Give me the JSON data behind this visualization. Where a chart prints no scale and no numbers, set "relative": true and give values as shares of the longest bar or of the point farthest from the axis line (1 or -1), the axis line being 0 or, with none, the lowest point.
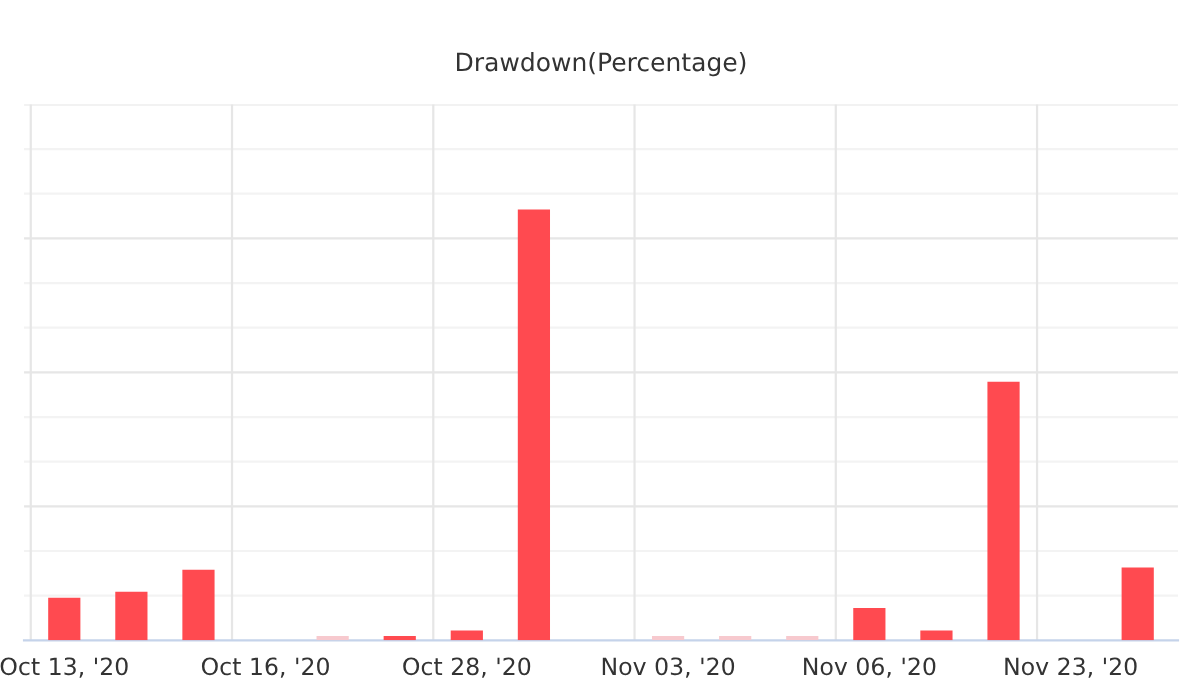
{
  "chart_data": {
    "type": "bar",
    "title": "Drawdown(Percentage)",
    "relative": true,
    "grid": true,
    "categories": [
      "Oct 13, '20",
      null,
      null,
      "Oct 16, '20",
      null,
      null,
      "Oct 28, '20",
      null,
      null,
      "Nov 03, '20",
      null,
      null,
      "Nov 06, '20",
      null,
      null,
      "Nov 23, '20",
      null
    ],
    "values": [
      0.099,
      0.113,
      0.164,
      0,
      0.01,
      0.01,
      0.023,
      1,
      0,
      0.01,
      0.01,
      0.01,
      0.075,
      0.023,
      0.6,
      0,
      0.169
    ],
    "colors": [
      "#ff4a50",
      "#ff4a50",
      "#ff4a50",
      "#ff4a50",
      "#f7c9ce",
      "#ff4a50",
      "#ff4a50",
      "#ff4a50",
      "#ff4a50",
      "#f7c9ce",
      "#f7c9ce",
      "#f7c9ce",
      "#ff4a50",
      "#ff4a50",
      "#ff4a50",
      "#ff4a50",
      "#ff4a50"
    ]
  }
}
